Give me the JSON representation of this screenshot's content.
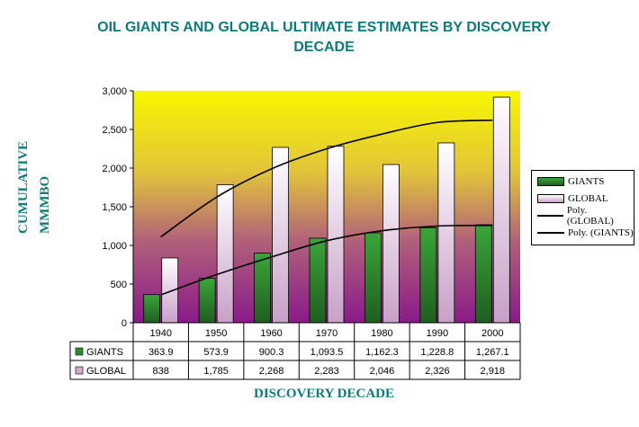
{
  "page": {
    "title": "OIL GIANTS AND GLOBAL ULTIMATE ESTIMATES BY DISCOVERY DECADE",
    "title_line1": "OIL GIANTS AND GLOBAL ULTIMATE ESTIMATES BY DISCOVERY",
    "title_line2": "DECADE",
    "ylabel_line1": "CUMULATIVE",
    "ylabel_line2": "MMMBO",
    "xlabel": "DISCOVERY DECADE"
  },
  "chart_data": {
    "type": "bar",
    "title": "OIL GIANTS AND GLOBAL ULTIMATE ESTIMATES BY DISCOVERY DECADE",
    "xlabel": "DISCOVERY DECADE",
    "ylabel": "CUMULATIVE MMMBO",
    "categories": [
      "1940",
      "1950",
      "1960",
      "1970",
      "1980",
      "1990",
      "2000"
    ],
    "ylim": [
      0,
      3000
    ],
    "yticks": [
      0,
      500,
      1000,
      1500,
      2000,
      2500,
      3000
    ],
    "ytick_labels": [
      "0",
      "500",
      "1,000",
      "1,500",
      "2,000",
      "2,500",
      "3,000"
    ],
    "grid": false,
    "legend_position": "right",
    "series": [
      {
        "name": "GIANTS",
        "values": [
          363.9,
          573.9,
          900.3,
          1093.5,
          1162.3,
          1228.8,
          1267.1
        ],
        "labels": [
          "363.9",
          "573.9",
          "900.3",
          "1,093.5",
          "1,162.3",
          "1,228.8",
          "1,267.1"
        ],
        "color": "#2e8b2e"
      },
      {
        "name": "GLOBAL",
        "values": [
          838,
          1785,
          2268,
          2283,
          2046,
          2326,
          2918
        ],
        "labels": [
          "838",
          "1,785",
          "2,268",
          "2,283",
          "2,046",
          "2,326",
          "2,918"
        ],
        "color": "#f0d8ec"
      }
    ],
    "trendlines": [
      {
        "name": "Poly. (GLOBAL)",
        "values": [
          1110,
          1620,
          1990,
          2250,
          2440,
          2590,
          2620
        ]
      },
      {
        "name": "Poly. (GIANTS)",
        "values": [
          360,
          620,
          850,
          1060,
          1190,
          1250,
          1260
        ]
      }
    ]
  },
  "colors": {
    "bg_top": "#f7f700",
    "bg_bottom": "#8a1a8a",
    "accent": "#0e7a7a"
  }
}
